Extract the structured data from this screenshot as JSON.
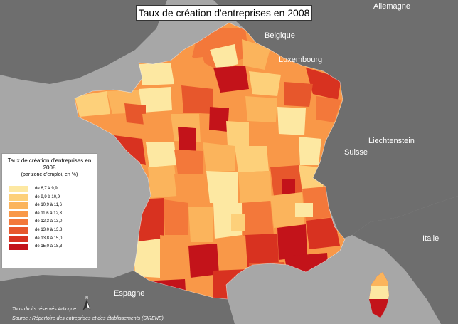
{
  "title": "Taux de création d'entreprises en 2008",
  "countries": {
    "allemagne": "Allemagne",
    "belgique": "Belgique",
    "luxembourg": "Luxembourg",
    "liechtenstein": "Liechtenstein",
    "suisse": "Suisse",
    "italie": "Italie",
    "espagne": "Espagne"
  },
  "legend": {
    "title": "Taux de création d'entreprises en 2008",
    "subtitle": "(par zone d'emploi, en %)",
    "classes": [
      {
        "label": "de 6,7 à 9,9",
        "color": "#fde8a2"
      },
      {
        "label": "de 9,9 à 10,9",
        "color": "#fdd07a"
      },
      {
        "label": "de 10,9 à 11,6",
        "color": "#fbb45c"
      },
      {
        "label": "de 11,6 à 12,3",
        "color": "#f99848"
      },
      {
        "label": "de 12,3 à 13,0",
        "color": "#f3783a"
      },
      {
        "label": "de 13,0 à 13,8",
        "color": "#e7572c"
      },
      {
        "label": "de 13,8 à 15,0",
        "color": "#d83220"
      },
      {
        "label": "de 15,0 à 18,3",
        "color": "#c3131a"
      }
    ]
  },
  "credits": {
    "rights": "Tous droits réservés Articque",
    "source": "Source : Répertoire des entreprises et des établissements (SIRENE)"
  },
  "colors": {
    "sea": "#a7a7a7",
    "land": "#6e6e6e",
    "corsica_base": "#d83220"
  }
}
